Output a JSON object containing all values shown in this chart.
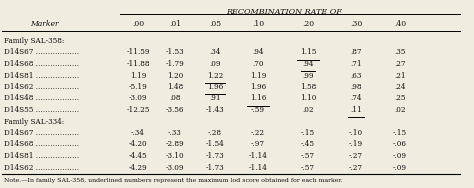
{
  "title": "Recombination Rate of",
  "col_headers": [
    "Marker",
    ".00",
    ".01",
    ".05",
    ".10",
    ".20",
    ".30",
    ".40"
  ],
  "section1_header": "Family SAL-358:",
  "section1_rows": [
    [
      "D14S67 ………………",
      "-11.59",
      "-1.53",
      ".34",
      ".94",
      "1.15",
      ".87",
      ".35"
    ],
    [
      "D14S68 ………………",
      "-11.88",
      "-1.79",
      ".09",
      ".70",
      ".94",
      ".71",
      ".27"
    ],
    [
      "D14S81 ………………",
      "1.19",
      "1.20",
      "1.22",
      "1.19",
      ".99",
      ".63",
      ".21"
    ],
    [
      "D14S62 ………………",
      "-5.19",
      "1.48",
      "1.96",
      "1.96",
      "1.58",
      ".98",
      ".24"
    ],
    [
      "D14S48 ………………",
      "-3.09",
      ".08",
      ".91",
      "1.16",
      "1.10",
      ".74",
      ".25"
    ],
    [
      "D14S55 ………………",
      "-12.25",
      "-3.56",
      "-1.43",
      "-.59",
      ".02",
      ".11",
      ".02"
    ]
  ],
  "section1_underline_cols": [
    5,
    5,
    3,
    3,
    4,
    6
  ],
  "section2_header": "Family SAL-334:",
  "section2_rows": [
    [
      "D14S67 ………………",
      "-.34",
      "-.33",
      "-.28",
      "-.22",
      "-.15",
      "-.10",
      "-.15"
    ],
    [
      "D14S68 ………………",
      "-4.20",
      "-2.89",
      "-1.54",
      "-.97",
      "-.45",
      "-.19",
      "-.06"
    ],
    [
      "D14S81 ………………",
      "-4.45",
      "-3.10",
      "-1.73",
      "-1.14",
      "-.57",
      "-.27",
      "-.09"
    ],
    [
      "D14S62 ………………",
      "-4.29",
      "-3.09",
      "-1.73",
      "-1.14",
      "-.57",
      "-.27",
      "-.09"
    ]
  ],
  "note": "Note.—In family SAL-358, underlined numbers represent the maximum lod score obtained for each marker.",
  "bg_color": "#f0ece0",
  "text_color": "#111111"
}
